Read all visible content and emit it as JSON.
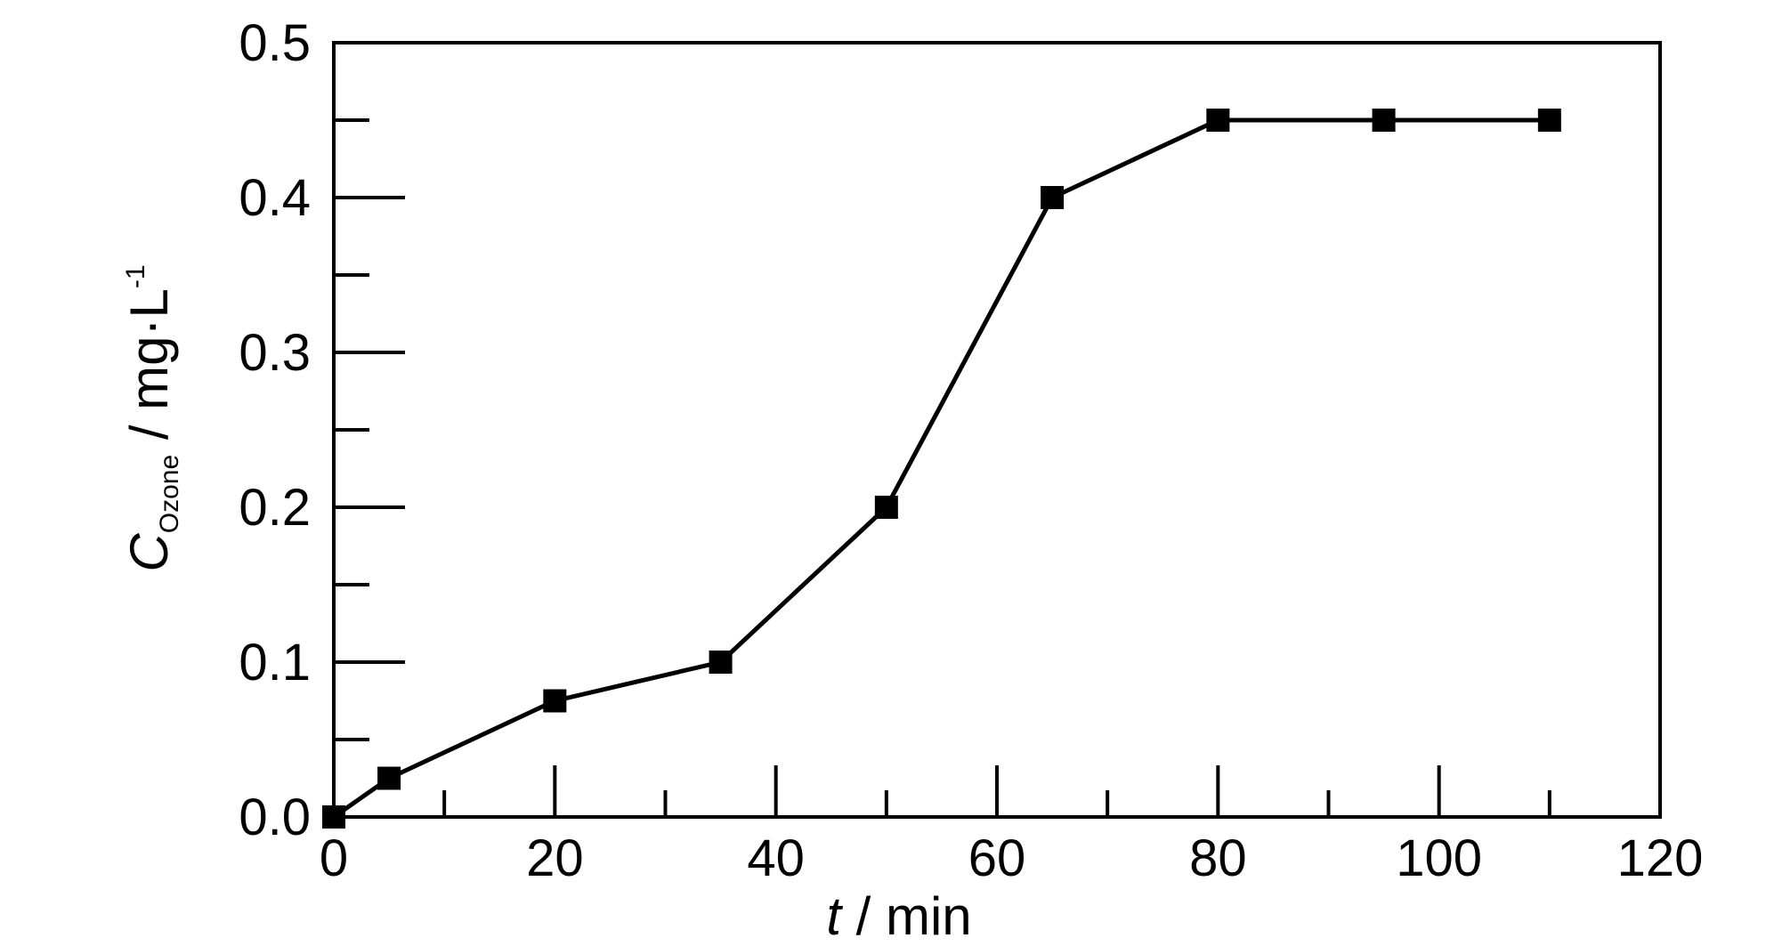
{
  "chart_data": {
    "type": "line",
    "title": "",
    "xlabel": {
      "variable": "t",
      "unit": " / min"
    },
    "ylabel": {
      "variable": "C",
      "subscript": "Ozone",
      "unit": " / mg·L",
      "superscript": "-1"
    },
    "xlim": [
      0,
      120
    ],
    "ylim": [
      0,
      0.5
    ],
    "x_ticks": [
      "0",
      "20",
      "40",
      "60",
      "80",
      "100",
      "120"
    ],
    "y_ticks": [
      "0.0",
      "0.1",
      "0.2",
      "0.3",
      "0.4",
      "0.5"
    ],
    "grid": false,
    "series": [
      {
        "x": [
          0,
          5,
          20,
          35,
          50,
          65,
          80,
          95,
          110
        ],
        "y": [
          0.0,
          0.025,
          0.075,
          0.1,
          0.2,
          0.4,
          0.45,
          0.45,
          0.45
        ],
        "marker": "square",
        "color": "#000000"
      }
    ]
  }
}
